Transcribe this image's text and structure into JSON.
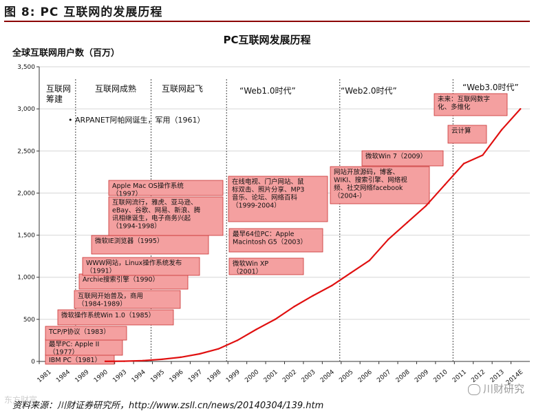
{
  "figure_label": "图 8:   PC 互联网的发展历程",
  "source_text": "资料来源：川财证券研究所，http://www.zsll.cn/news/20140304/139.htm",
  "watermark_left": "东方财富",
  "watermark_right": "川财研究",
  "chart_data": {
    "type": "line",
    "title": "PC互联网发展历程",
    "ylabel": "全球互联网用户数（百万）",
    "xlabel": "",
    "ylim": [
      0,
      3500
    ],
    "yticks": [
      0,
      500,
      1000,
      1500,
      2000,
      2500,
      3000,
      3500
    ],
    "ytick_labels": [
      "0",
      "500",
      "1,000",
      "1,500",
      "2,000",
      "2,500",
      "3,000",
      "3,500"
    ],
    "categories": [
      "1981",
      "1984",
      "1989",
      "1990",
      "1993",
      "1994",
      "1995",
      "1996",
      "1997",
      "1998",
      "1999",
      "2000",
      "2001",
      "2002",
      "2003",
      "2004",
      "2005",
      "2006",
      "2007",
      "2008",
      "2009",
      "2010",
      "2011",
      "2012",
      "2013",
      "2014E"
    ],
    "values": [
      null,
      null,
      null,
      1,
      3,
      10,
      25,
      50,
      90,
      150,
      250,
      380,
      500,
      650,
      780,
      900,
      1050,
      1200,
      1450,
      1650,
      1850,
      2100,
      2350,
      2450,
      2750,
      3000
    ],
    "colors": {
      "line": "#e01010",
      "box_fill": "#f4a0a0",
      "box_border": "#c83030",
      "grid": "#d6d6d6",
      "divider": "#444444"
    },
    "eras": [
      {
        "label": "互联网\n筹建"
      },
      {
        "label": "互联网成熟"
      },
      {
        "label": "互联网起飞"
      },
      {
        "label": "“Web1.0时代”"
      },
      {
        "label": "“Web2.0时代”"
      },
      {
        "label": "“Web3.0时代”"
      }
    ],
    "bullet_note": "•  ARPANET阿帕网诞生，军用（1961）",
    "annotations": [
      {
        "text": "IBM PC（1981）"
      },
      {
        "text": "最早PC: Apple II\n（1977）"
      },
      {
        "text": "TCP/P协议（1983）"
      },
      {
        "text": "微软操作系统Win 1.0（1985）"
      },
      {
        "text": "互联网开始普及，商用\n（1984-1989）"
      },
      {
        "text": "Archie搜索引擎（1990）"
      },
      {
        "text": "WWW网站，Linux操作系统发布\n（1991）"
      },
      {
        "text": "微软IE浏览器（1995）"
      },
      {
        "text": "互联网流行，雅虎、亚马逊、\neBay、谷歌、网易、新浪、腾\n讯相继诞生，电子商务兴起\n（1994-1998）"
      },
      {
        "text": "Apple Mac OS操作系统\n（1997）"
      },
      {
        "text": "在线电视、门户网站、鼠\n标双击、照片分享、MP3\n音乐、论坛、网络百科\n（1999-2004）"
      },
      {
        "text": "最早64位PC：Apple\nMacintosh G5（2003）"
      },
      {
        "text": "微软Win XP\n（2001）"
      },
      {
        "text": "网站开放源码，博客、\nWIKI、搜索引擎、网络视\n频、社交网络facebook\n（2004-）"
      },
      {
        "text": "微软Win 7（2009）"
      },
      {
        "text": "云计算"
      },
      {
        "text": "未来：互联网数字\n化、多维化"
      }
    ]
  }
}
